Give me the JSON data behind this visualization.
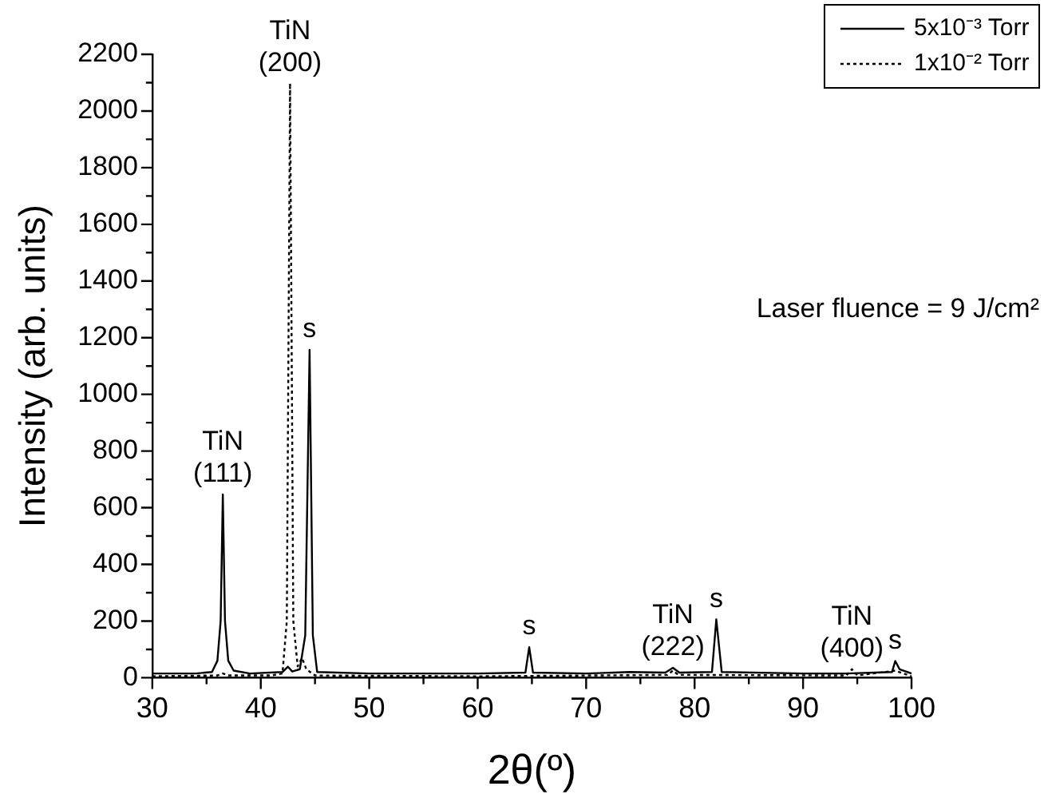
{
  "chart_data": {
    "type": "line",
    "xlabel": "2θ(º)",
    "ylabel": "Intensity (arb. units)",
    "xlim": [
      30,
      100
    ],
    "xticks": [
      30,
      {
        "value": 35,
        "label": null
      },
      40,
      {
        "value": 45,
        "label": null
      },
      50,
      {
        "value": 55,
        "label": null
      },
      60,
      {
        "value": 65,
        "label": null
      },
      70,
      {
        "value": 75,
        "label": null
      },
      80,
      {
        "value": 85,
        "label": null
      },
      90,
      {
        "value": 95,
        "label": null
      },
      100
    ],
    "ylim": [
      0,
      2200
    ],
    "yticks": [
      0,
      {
        "value": 100,
        "label": null
      },
      200,
      {
        "value": 300,
        "label": null
      },
      400,
      {
        "value": 500,
        "label": null
      },
      600,
      {
        "value": 700,
        "label": null
      },
      800,
      {
        "value": 900,
        "label": null
      },
      1000,
      {
        "value": 1100,
        "label": null
      },
      1200,
      {
        "value": 1300,
        "label": null
      },
      1400,
      {
        "value": 1500,
        "label": null
      },
      1600,
      {
        "value": 1700,
        "label": null
      },
      1800,
      {
        "value": 1900,
        "label": null
      },
      2000,
      {
        "value": 2100,
        "label": null
      },
      2200
    ],
    "grid": false,
    "legend": "top right",
    "marker": "none",
    "series": [
      {
        "name": "5x10⁻³ Torr",
        "color": "#000000",
        "line_style": "solid",
        "x": [
          30,
          34,
          35.5,
          36,
          36.3,
          36.5,
          36.7,
          37,
          37.5,
          39,
          42,
          42.5,
          42.9,
          43.6,
          44.1,
          44.5,
          44.8,
          45.2,
          50,
          55,
          60,
          64.4,
          64.75,
          65.1,
          70,
          74,
          77.3,
          78,
          78.6,
          81.6,
          82,
          82.5,
          90,
          94,
          98.2,
          98.5,
          98.9,
          100
        ],
        "values": [
          15,
          15,
          20,
          60,
          200,
          647,
          200,
          60,
          25,
          15,
          20,
          39,
          22,
          30,
          150,
          1157,
          150,
          20,
          15,
          15,
          15,
          18,
          108,
          18,
          15,
          20,
          18,
          35,
          18,
          20,
          206,
          20,
          15,
          15,
          20,
          59,
          30,
          15
        ]
      },
      {
        "name": "1x10⁻² Torr",
        "color": "#000000",
        "line_style": "dotted",
        "x": [
          30,
          36,
          36.5,
          37,
          41,
          42,
          42.4,
          42.7,
          43,
          43.4,
          43.8,
          44.2,
          45,
          60,
          77.5,
          78,
          78.5,
          94,
          94.5,
          95,
          98.5,
          100
        ],
        "values": [
          5,
          8,
          15,
          8,
          8,
          15,
          200,
          2098,
          200,
          40,
          70,
          30,
          8,
          5,
          10,
          25,
          10,
          8,
          30,
          8,
          25,
          5
        ]
      }
    ],
    "annotations": [
      {
        "text": "TiN\n(111)",
        "x": 36.5,
        "y": 647
      },
      {
        "text": "TiN\n(200)",
        "x": 42.7,
        "y": 2098
      },
      {
        "text": "s",
        "x": 44.5,
        "y": 1157
      },
      {
        "text": "s",
        "x": 64.75,
        "y": 108
      },
      {
        "text": "TiN\n(222)",
        "x": 78,
        "y": 35
      },
      {
        "text": "s",
        "x": 82,
        "y": 206
      },
      {
        "text": "TiN\n(400)",
        "x": 94.5,
        "y": 30
      },
      {
        "text": "s",
        "x": 98.5,
        "y": 59
      },
      "Laser fluence = 9 J/cm²"
    ]
  }
}
